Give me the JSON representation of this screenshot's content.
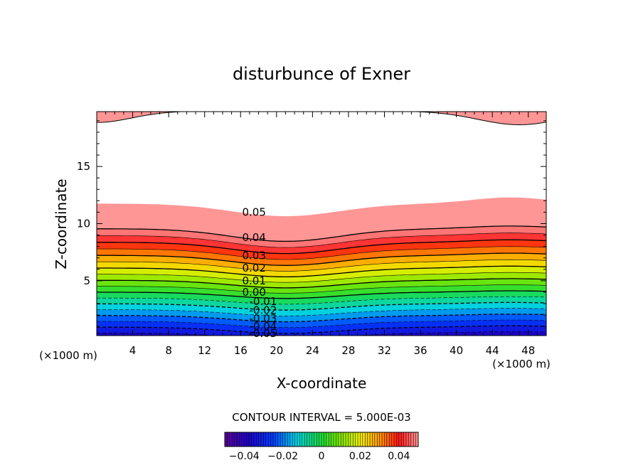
{
  "chart_data": {
    "type": "contour",
    "title": "disturbunce of Exner",
    "xlabel": "X-coordinate",
    "ylabel": "Z-coordinate",
    "x_unit": "(×1000 m)",
    "xlim": [
      0,
      50
    ],
    "ylim": [
      0.2,
      19.8
    ],
    "x_ticks": [
      4,
      8,
      12,
      16,
      20,
      24,
      28,
      32,
      36,
      40,
      44,
      48
    ],
    "y_ticks": [
      5,
      10,
      15
    ],
    "grid": false,
    "contour_interval_label": "CONTOUR INTERVAL = 5.000E-03",
    "colorbar": {
      "range": [
        -0.05,
        0.05
      ],
      "tick_values": [
        -0.04,
        -0.02,
        0,
        0.02,
        0.04
      ],
      "tick_labels": [
        "−0.04",
        "−0.02",
        "0",
        "0.02",
        "0.04"
      ],
      "colormap": "rainbow: purple-blue-cyan-green-yellow-orange-red-pink"
    },
    "contour_labels": [
      {
        "text": "0.05",
        "value": 0.05,
        "x": 17.5,
        "z": 11.0
      },
      {
        "text": "0.04",
        "value": 0.04,
        "x": 17.5,
        "z": 8.8
      },
      {
        "text": "0.03",
        "value": 0.03,
        "x": 17.5,
        "z": 7.2
      },
      {
        "text": "0.02",
        "value": 0.02,
        "x": 17.5,
        "z": 6.1
      },
      {
        "text": "0.01",
        "value": 0.01,
        "x": 17.5,
        "z": 5.0
      },
      {
        "text": "0.00",
        "value": 0.0,
        "x": 17.5,
        "z": 4.0
      },
      {
        "text": "-0.01",
        "value": -0.01,
        "x": 18.5,
        "z": 3.2
      },
      {
        "text": "-0.02",
        "value": -0.02,
        "x": 18.5,
        "z": 2.4
      },
      {
        "text": "-0.03",
        "value": -0.03,
        "x": 18.5,
        "z": 1.7
      },
      {
        "text": "-0.04",
        "value": -0.04,
        "x": 18.5,
        "z": 1.0
      },
      {
        "text": "-0.05",
        "value": -0.05,
        "x": 18.5,
        "z": 0.4
      }
    ]
  }
}
